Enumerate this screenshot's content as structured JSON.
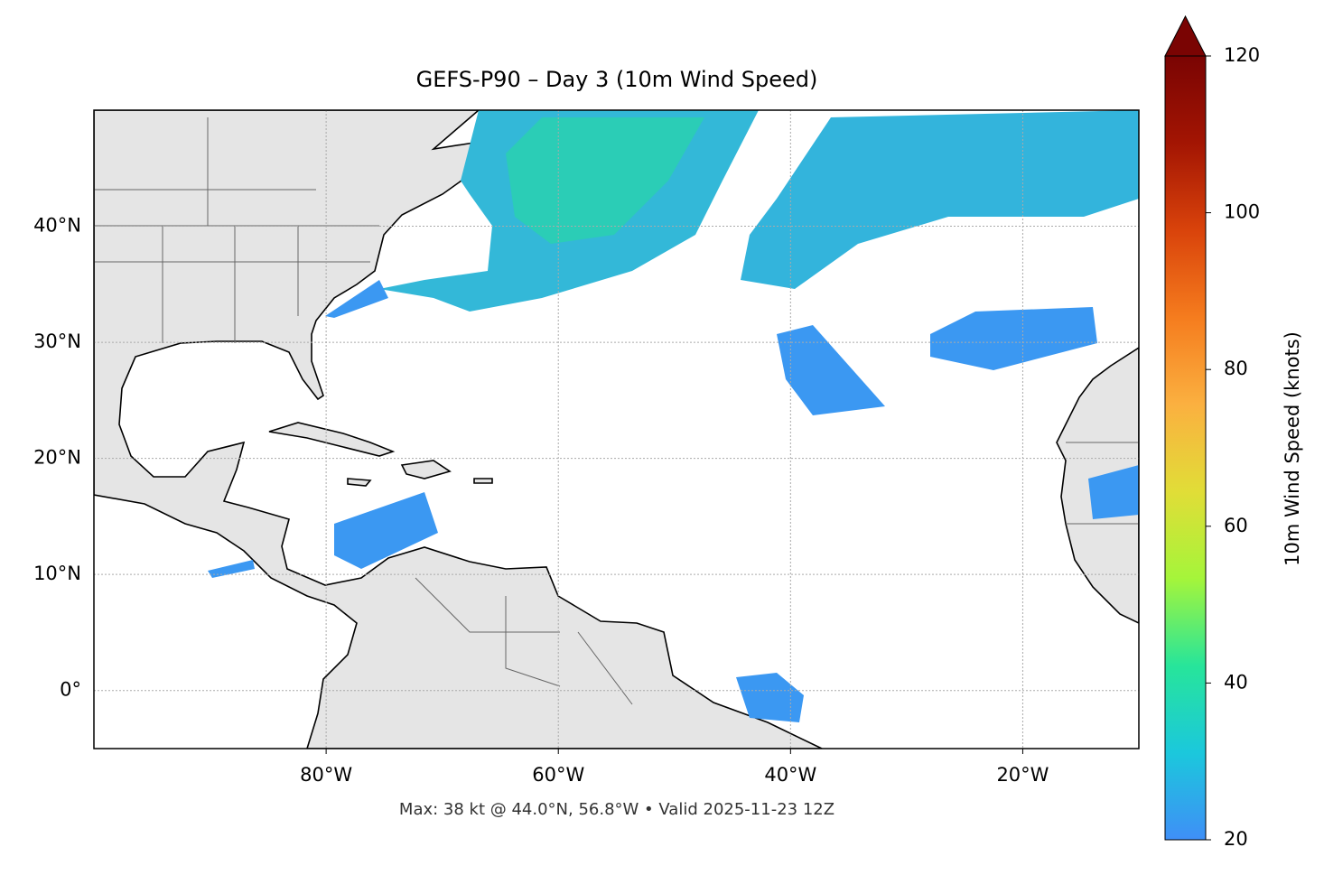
{
  "chart_data": {
    "type": "map",
    "title": "GEFS-P90 – Day 3 (10m Wind Speed)",
    "footer": "Max: 38 kt @ 44.0°N, 56.8°W • Valid 2025-11-23 12Z",
    "xlim": [
      -100,
      -10
    ],
    "ylim": [
      -5,
      50
    ],
    "xticks": [
      {
        "value": -80,
        "label": "80°W"
      },
      {
        "value": -60,
        "label": "60°W"
      },
      {
        "value": -40,
        "label": "40°W"
      },
      {
        "value": -20,
        "label": "20°W"
      }
    ],
    "yticks": [
      {
        "value": 0,
        "label": "0°"
      },
      {
        "value": 10,
        "label": "10°N"
      },
      {
        "value": 20,
        "label": "20°N"
      },
      {
        "value": 30,
        "label": "30°N"
      },
      {
        "value": 40,
        "label": "40°N"
      }
    ],
    "grid": true,
    "colorbar": {
      "label": "10m Wind Speed (knots)",
      "clim": [
        20,
        120
      ],
      "ticks": [
        20,
        40,
        60,
        80,
        100,
        120
      ],
      "colors": [
        "#3f8ff7",
        "#1bc8dc",
        "#27e59a",
        "#a5f53a",
        "#e1dd37",
        "#fbb040",
        "#f57c1e",
        "#d9430b",
        "#a31503",
        "#7a0403"
      ],
      "extend": "max"
    }
  }
}
